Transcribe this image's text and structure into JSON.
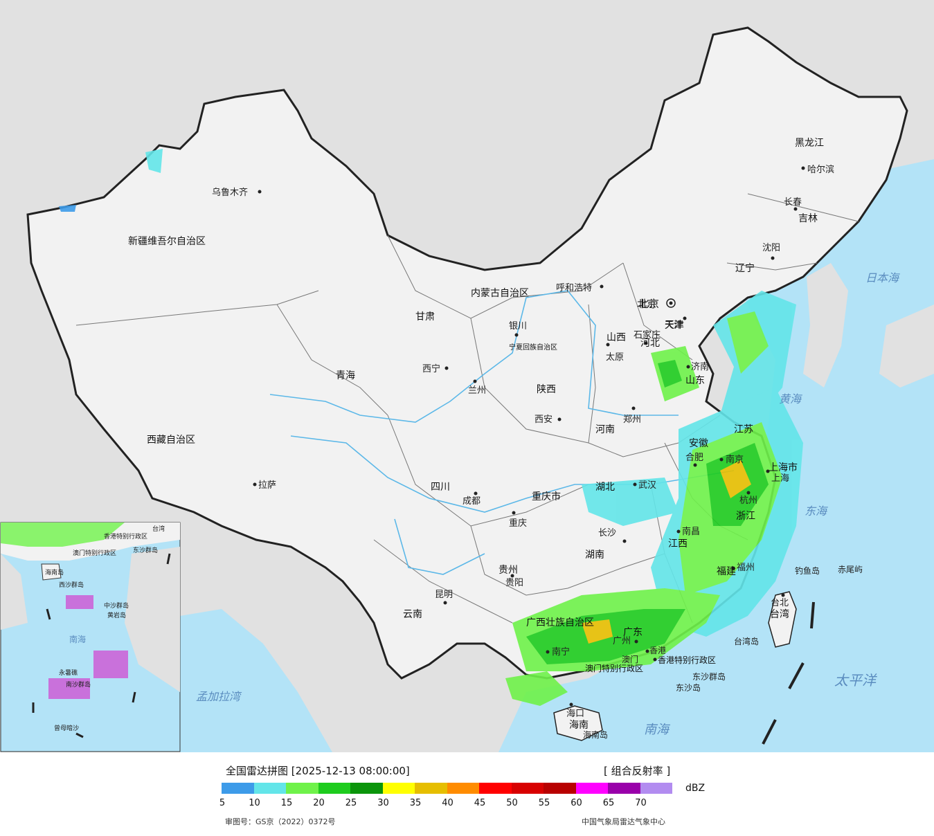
{
  "header": {
    "title": "全国雷达拼图 [2025-12-13 08:00:00]",
    "product": "[ 组合反射率 ]"
  },
  "legend": {
    "unit": "dBZ",
    "colors": [
      "#3d9be9",
      "#63e5e9",
      "#6ff24a",
      "#1ecc1e",
      "#0b950b",
      "#ffff00",
      "#e6be00",
      "#ff8c00",
      "#ff0000",
      "#d80000",
      "#b80000",
      "#ff00ff",
      "#9900aa",
      "#b28cf0"
    ],
    "ticks": [
      "5",
      "10",
      "15",
      "20",
      "25",
      "30",
      "35",
      "40",
      "45",
      "50",
      "55",
      "60",
      "65",
      "70"
    ]
  },
  "footer": {
    "approval": "审图号：GS京（2022）0372号",
    "agency": "中国气象局雷达气象中心"
  },
  "map": {
    "colors": {
      "land": "#f2f2f2",
      "sea": "#b3e3f7",
      "outside": "#e1e1e1",
      "border": "#222222",
      "river": "#5cb8e8"
    },
    "provinces": [
      {
        "name": "新疆维吾尔自治区"
      },
      {
        "name": "西藏自治区"
      },
      {
        "name": "青海"
      },
      {
        "name": "甘肃"
      },
      {
        "name": "内蒙古自治区"
      },
      {
        "name": "黑龙江"
      },
      {
        "name": "吉林"
      },
      {
        "name": "辽宁"
      },
      {
        "name": "河北"
      },
      {
        "name": "山西"
      },
      {
        "name": "陕西"
      },
      {
        "name": "宁夏回族自治区"
      },
      {
        "name": "四川"
      },
      {
        "name": "重庆市"
      },
      {
        "name": "云南"
      },
      {
        "name": "贵州"
      },
      {
        "name": "广西壮族自治区"
      },
      {
        "name": "广东"
      },
      {
        "name": "湖南"
      },
      {
        "name": "湖北"
      },
      {
        "name": "河南"
      },
      {
        "name": "山东"
      },
      {
        "name": "江苏"
      },
      {
        "name": "安徽"
      },
      {
        "name": "浙江"
      },
      {
        "name": "江西"
      },
      {
        "name": "福建"
      },
      {
        "name": "台湾"
      },
      {
        "name": "海南"
      },
      {
        "name": "上海市"
      },
      {
        "name": "北京"
      },
      {
        "name": "天津"
      },
      {
        "name": "香港特别行政区"
      },
      {
        "name": "澳门特别行政区"
      }
    ],
    "cities": [
      {
        "name": "乌鲁木齐"
      },
      {
        "name": "拉萨"
      },
      {
        "name": "西宁"
      },
      {
        "name": "兰州"
      },
      {
        "name": "银川"
      },
      {
        "name": "呼和浩特"
      },
      {
        "name": "哈尔滨"
      },
      {
        "name": "长春"
      },
      {
        "name": "沈阳"
      },
      {
        "name": "北京"
      },
      {
        "name": "天津"
      },
      {
        "name": "石家庄"
      },
      {
        "name": "太原"
      },
      {
        "name": "济南"
      },
      {
        "name": "郑州"
      },
      {
        "name": "西安"
      },
      {
        "name": "成都"
      },
      {
        "name": "重庆"
      },
      {
        "name": "贵阳"
      },
      {
        "name": "昆明"
      },
      {
        "name": "南宁"
      },
      {
        "name": "广州"
      },
      {
        "name": "长沙"
      },
      {
        "name": "武汉"
      },
      {
        "name": "合肥"
      },
      {
        "name": "南京"
      },
      {
        "name": "杭州"
      },
      {
        "name": "上海"
      },
      {
        "name": "南昌"
      },
      {
        "name": "福州"
      },
      {
        "name": "台北"
      },
      {
        "name": "海口"
      },
      {
        "name": "香港"
      },
      {
        "name": "澳门"
      }
    ],
    "seas": [
      {
        "name": "日本海"
      },
      {
        "name": "黄海"
      },
      {
        "name": "东海"
      },
      {
        "name": "太平洋"
      },
      {
        "name": "南海"
      },
      {
        "name": "孟加拉湾"
      }
    ],
    "islands": [
      {
        "name": "钓鱼岛"
      },
      {
        "name": "赤尾屿"
      },
      {
        "name": "台湾岛"
      },
      {
        "name": "东沙群岛"
      },
      {
        "name": "东沙岛"
      },
      {
        "name": "海南岛"
      }
    ]
  },
  "inset": {
    "labels": [
      "台湾",
      "香港特别行政区",
      "澳门特别行政区",
      "东沙群岛",
      "海南岛",
      "西沙群岛",
      "中沙群岛",
      "黄岩岛",
      "南海",
      "永暑礁",
      "南沙群岛",
      "曾母暗沙"
    ]
  }
}
